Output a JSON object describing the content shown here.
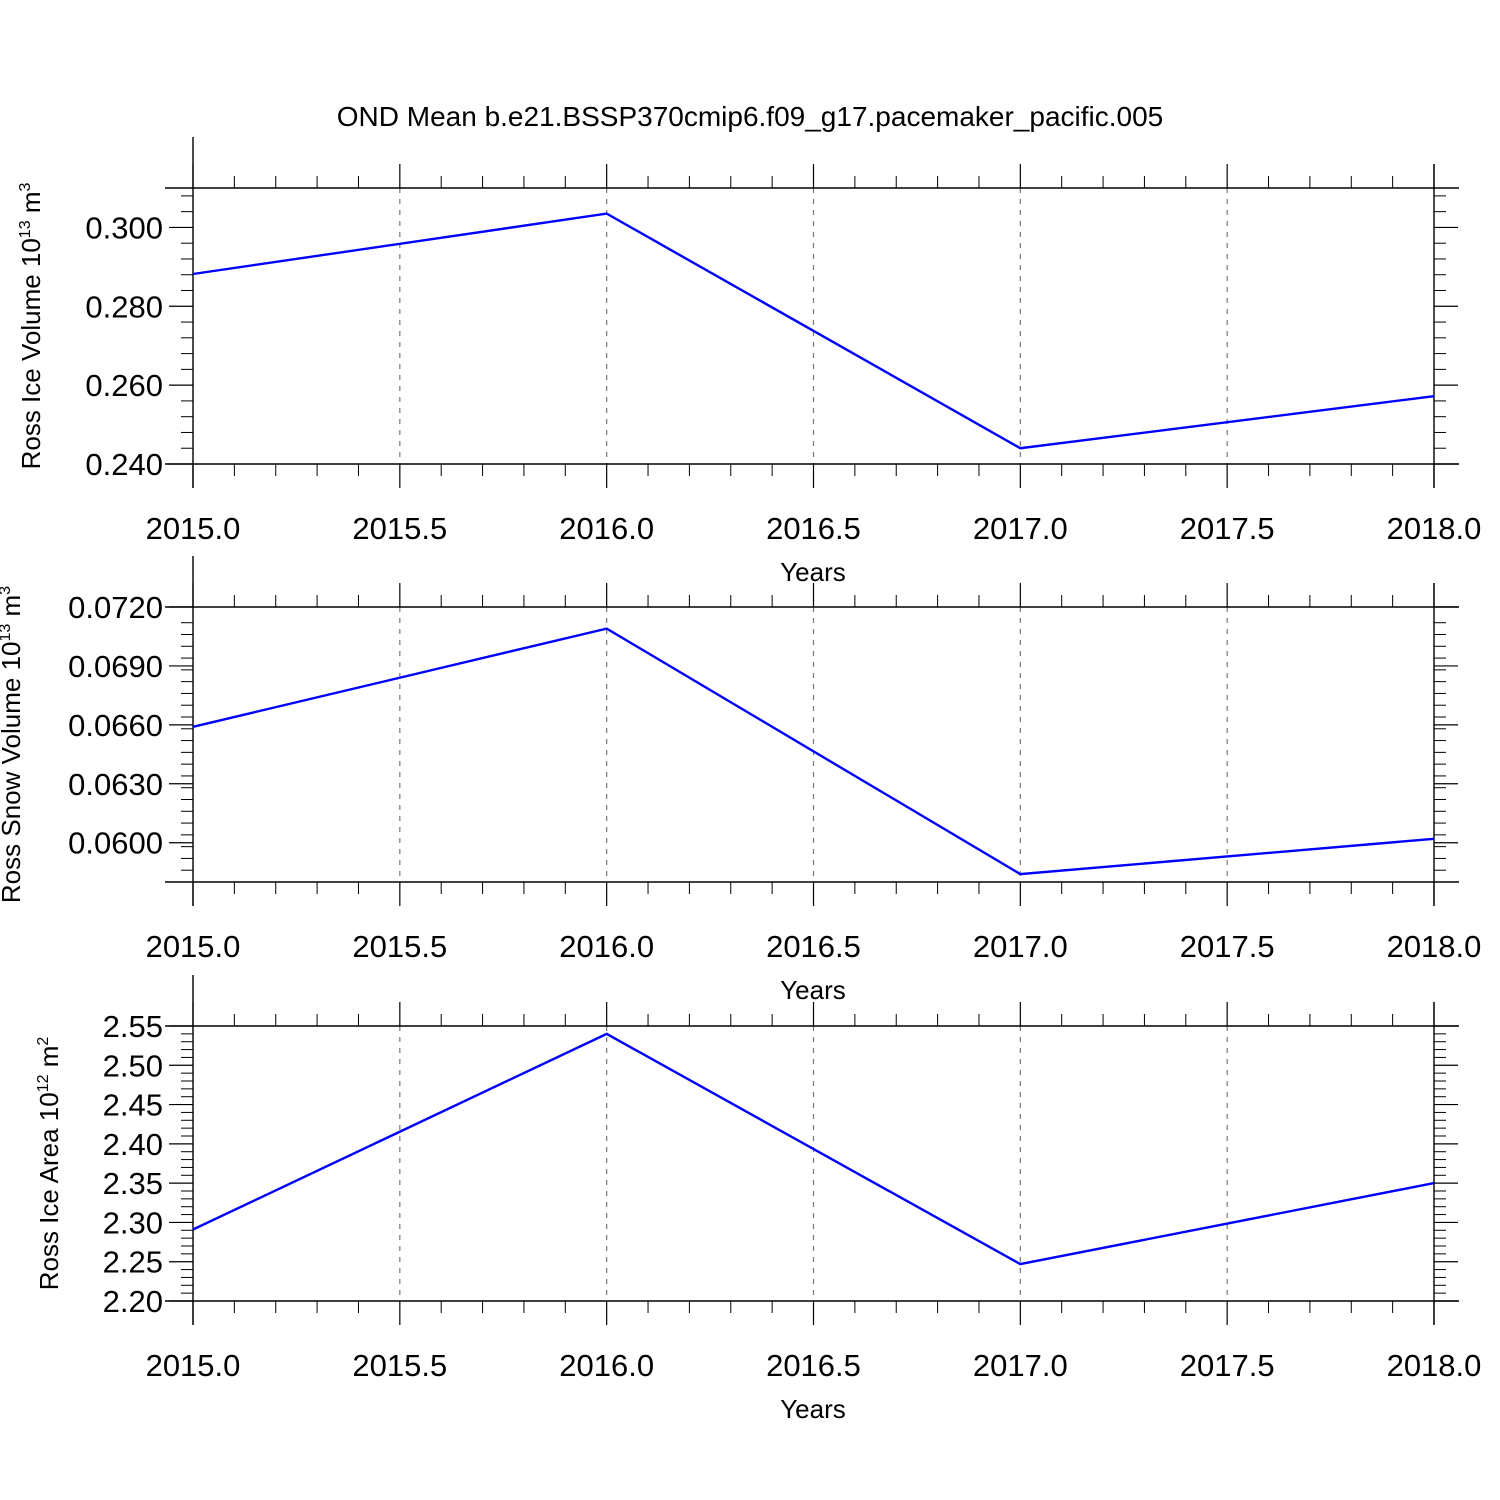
{
  "title": "OND Mean b.e21.BSSP370cmip6.f09_g17.pacemaker_pacific.005",
  "colors": {
    "line": "#0000ff",
    "axis": "#000000",
    "grid": "#777777"
  },
  "chart_data": [
    {
      "type": "line",
      "xlabel": "Years",
      "ylabel_main": "Ross Ice Volume 10",
      "ylabel_exp": "13",
      "ylabel_unit": " m",
      "ylabel_unit_exp": "3",
      "xlim": [
        2015.0,
        2018.0
      ],
      "ylim": [
        0.24,
        0.31
      ],
      "x_ticks": [
        2015.0,
        2015.5,
        2016.0,
        2016.5,
        2017.0,
        2017.5,
        2018.0
      ],
      "x_tick_labels": [
        "2015.0",
        "2015.5",
        "2016.0",
        "2016.5",
        "2017.0",
        "2017.5",
        "2018.0"
      ],
      "y_ticks": [
        0.24,
        0.26,
        0.28,
        0.3
      ],
      "y_tick_labels": [
        "0.240",
        "0.260",
        "0.280",
        "0.300"
      ],
      "x_minor_step": 0.1,
      "y_minor_step": 0.004,
      "grid": "vertical dashed at major x ticks",
      "x": [
        2015,
        2016,
        2017,
        2018
      ],
      "series": [
        {
          "values": [
            0.2882,
            0.3035,
            0.244,
            0.2572
          ]
        }
      ]
    },
    {
      "type": "line",
      "xlabel": "Years",
      "ylabel_main": "Ross Snow Volume 10",
      "ylabel_exp": "13",
      "ylabel_unit": " m",
      "ylabel_unit_exp": "3",
      "xlim": [
        2015.0,
        2018.0
      ],
      "ylim": [
        0.058,
        0.072
      ],
      "x_ticks": [
        2015.0,
        2015.5,
        2016.0,
        2016.5,
        2017.0,
        2017.5,
        2018.0
      ],
      "x_tick_labels": [
        "2015.0",
        "2015.5",
        "2016.0",
        "2016.5",
        "2017.0",
        "2017.5",
        "2018.0"
      ],
      "y_ticks": [
        0.06,
        0.063,
        0.066,
        0.069,
        0.072
      ],
      "y_tick_labels": [
        "0.0600",
        "0.0630",
        "0.0660",
        "0.0690",
        "0.0720"
      ],
      "x_minor_step": 0.1,
      "y_minor_step": 0.0006,
      "grid": "vertical dashed at major x ticks",
      "x": [
        2015,
        2016,
        2017,
        2018
      ],
      "series": [
        {
          "values": [
            0.0659,
            0.0709,
            0.0584,
            0.0602
          ]
        }
      ]
    },
    {
      "type": "line",
      "xlabel": "Years",
      "ylabel_main": "Ross Ice Area 10",
      "ylabel_exp": "12",
      "ylabel_unit": " m",
      "ylabel_unit_exp": "2",
      "xlim": [
        2015.0,
        2018.0
      ],
      "ylim": [
        2.2,
        2.55
      ],
      "x_ticks": [
        2015.0,
        2015.5,
        2016.0,
        2016.5,
        2017.0,
        2017.5,
        2018.0
      ],
      "x_tick_labels": [
        "2015.0",
        "2015.5",
        "2016.0",
        "2016.5",
        "2017.0",
        "2017.5",
        "2018.0"
      ],
      "y_ticks": [
        2.2,
        2.25,
        2.3,
        2.35,
        2.4,
        2.45,
        2.5,
        2.55
      ],
      "y_tick_labels": [
        "2.20",
        "2.25",
        "2.30",
        "2.35",
        "2.40",
        "2.45",
        "2.50",
        "2.55"
      ],
      "x_minor_step": 0.1,
      "y_minor_step": 0.01,
      "grid": "vertical dashed at major x ticks",
      "x": [
        2015,
        2016,
        2017,
        2018
      ],
      "series": [
        {
          "values": [
            2.291,
            2.54,
            2.247,
            2.35
          ]
        }
      ]
    }
  ]
}
